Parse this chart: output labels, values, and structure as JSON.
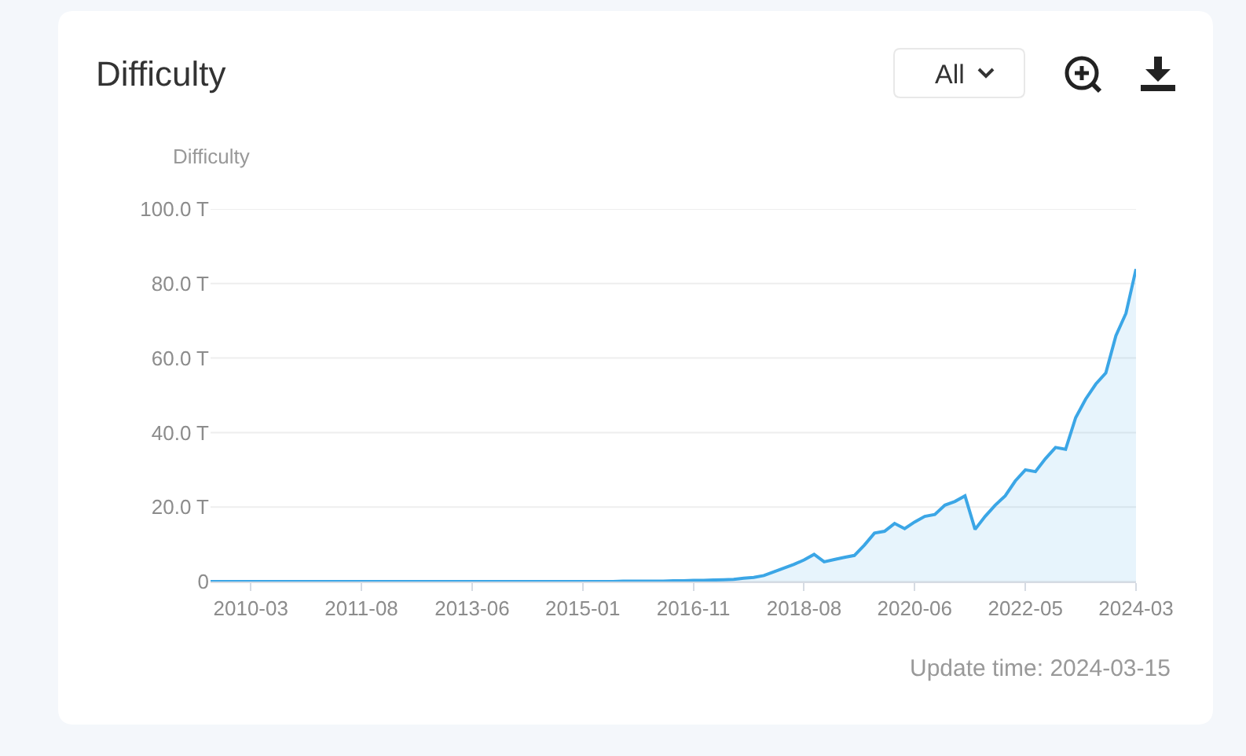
{
  "chart_data": {
    "type": "area",
    "title": "Difficulty",
    "ylabel": "Difficulty",
    "annotations": [
      "All",
      "Update time: 2024-03-15"
    ],
    "categories": [
      null,
      null,
      null,
      null,
      "2010-03",
      null,
      null,
      null,
      null,
      null,
      null,
      null,
      null,
      null,
      null,
      "2011-08",
      null,
      null,
      null,
      null,
      null,
      null,
      null,
      null,
      null,
      null,
      "2013-06",
      null,
      null,
      null,
      null,
      null,
      null,
      null,
      null,
      null,
      null,
      "2015-01",
      null,
      null,
      null,
      null,
      null,
      null,
      null,
      null,
      null,
      null,
      "2016-11",
      null,
      null,
      null,
      null,
      null,
      null,
      null,
      null,
      null,
      null,
      "2018-08",
      null,
      null,
      null,
      null,
      null,
      null,
      null,
      null,
      null,
      null,
      "2020-06",
      null,
      null,
      null,
      null,
      null,
      null,
      null,
      null,
      null,
      null,
      "2022-05",
      null,
      null,
      null,
      null,
      null,
      null,
      null,
      null,
      null,
      null,
      "2024-03"
    ],
    "series": [
      {
        "color": "#3ba6e6",
        "values": [
          0,
          0,
          0,
          0,
          0,
          0,
          0,
          0,
          0,
          0,
          0,
          0,
          0,
          0,
          0,
          0,
          0,
          0,
          0,
          0,
          0,
          0,
          0,
          0,
          0,
          0,
          0,
          0,
          0,
          0,
          0,
          0,
          0,
          0,
          0,
          0,
          0,
          0,
          0,
          0,
          0,
          0.1,
          0.1,
          0.1,
          0.1,
          0.1,
          0.2,
          0.2,
          0.3,
          0.3,
          0.4,
          0.5,
          0.6,
          0.9,
          1.1,
          1.6,
          2.6,
          3.6,
          4.6,
          5.8,
          7.3,
          5.3,
          5.9,
          6.5,
          7.0,
          9.8,
          13.0,
          13.5,
          15.6,
          14.2,
          16.0,
          17.5,
          18.0,
          20.5,
          21.5,
          23.0,
          14.0,
          17.5,
          20.5,
          23.0,
          27.0,
          30.0,
          29.5,
          33.0,
          36.0,
          35.5,
          44.0,
          49.0,
          53.0,
          56.0,
          66.0,
          72.0,
          83.9
        ]
      }
    ],
    "ylim": [
      0,
      100
    ],
    "yticks": [
      0,
      {
        "value": 20,
        "label": "20.0 T"
      },
      {
        "value": 40,
        "label": "40.0 T"
      },
      {
        "value": 60,
        "label": "60.0 T"
      },
      {
        "value": 80,
        "label": "80.0 T"
      },
      {
        "value": 100,
        "label": "100.0 T"
      }
    ],
    "grid": "y"
  }
}
